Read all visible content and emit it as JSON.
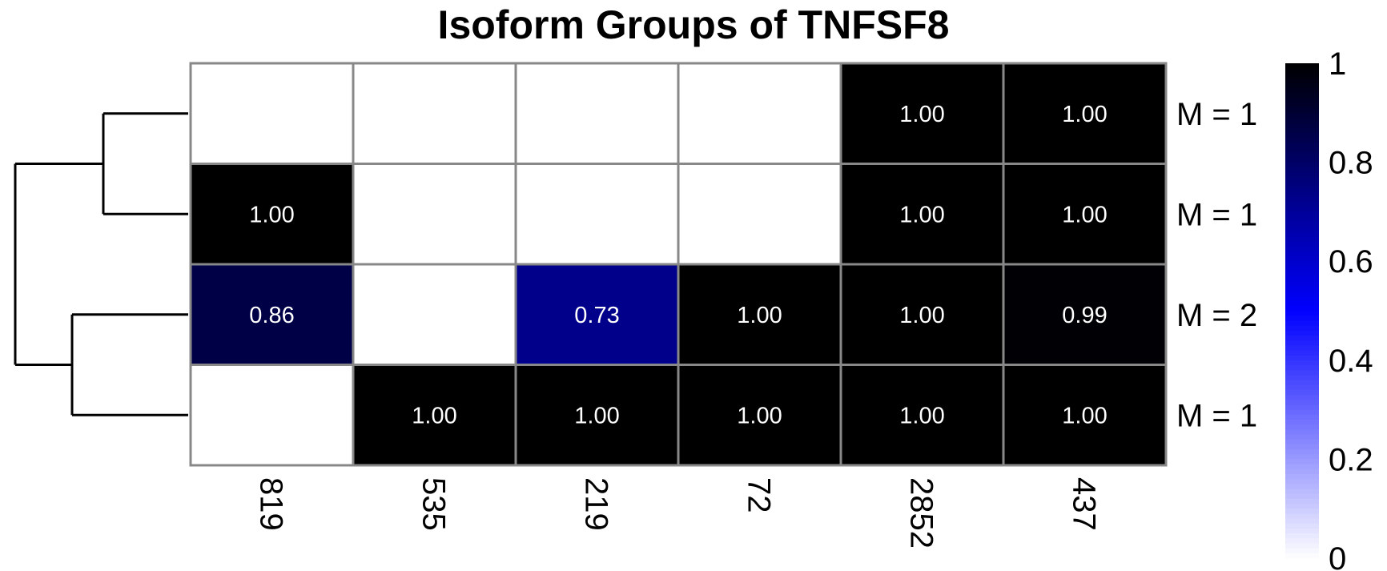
{
  "chart_data": {
    "type": "heatmap",
    "title": "Isoform Groups of TNFSF8",
    "columns": [
      "819",
      "535",
      "219",
      "72",
      "2852",
      "437"
    ],
    "rows": [
      "M = 1",
      "M = 1",
      "M = 2",
      "M = 1"
    ],
    "values": [
      [
        null,
        null,
        null,
        null,
        1.0,
        1.0
      ],
      [
        1.0,
        null,
        null,
        null,
        1.0,
        1.0
      ],
      [
        0.86,
        null,
        0.73,
        1.0,
        1.0,
        0.99
      ],
      [
        null,
        1.0,
        1.0,
        1.0,
        1.0,
        1.0
      ]
    ],
    "cell_labels": [
      [
        "",
        "",
        "",
        "",
        "1.00",
        "1.00"
      ],
      [
        "1.00",
        "",
        "",
        "",
        "1.00",
        "1.00"
      ],
      [
        "0.86",
        "",
        "0.73",
        "1.00",
        "1.00",
        "0.99"
      ],
      [
        "",
        "1.00",
        "1.00",
        "1.00",
        "1.00",
        "1.00"
      ]
    ],
    "color_scale": {
      "range": [
        0,
        1
      ],
      "ticks": [
        "1",
        "0.8",
        "0.6",
        "0.4",
        "0.2",
        "0"
      ],
      "colors": {
        "low": "#ffffff",
        "mid": "#0000ff",
        "high": "#000000"
      }
    },
    "row_dendrogram": true,
    "cell_border_color": "#888888",
    "legend_position": "right"
  }
}
